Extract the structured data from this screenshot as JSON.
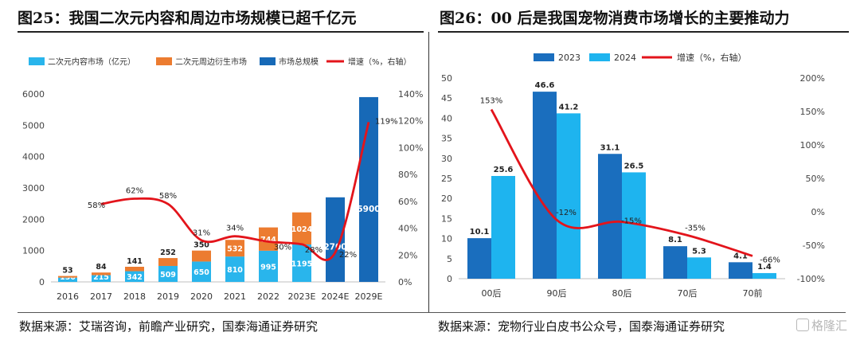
{
  "left_figure": {
    "title": "图25：我国二次元内容和周边市场规模已超千亿元",
    "source": "数据来源：艾瑞咨询，前瞻产业研究，国泰海通证券研究"
  },
  "right_figure": {
    "title": "图26：00 后是我国宠物消费市场增长的主要推动力",
    "source": "数据来源：宠物行业白皮书公众号，国泰海通证券研究"
  },
  "watermark": "格隆汇",
  "colors": {
    "light_blue": "#29b5ec",
    "orange": "#ec7c30",
    "dark_blue": "#1769b7",
    "red": "#e3141b",
    "blue_2023": "#1a6ebe",
    "blue_2024": "#1eb4ef"
  },
  "chart_data": [
    {
      "type": "bar",
      "stacked": true,
      "categories": [
        "2016",
        "2017",
        "2018",
        "2019",
        "2020",
        "2021",
        "2022",
        "2023E",
        "2024E",
        "2029E"
      ],
      "series": [
        {
          "name": "二次元内容市场（亿元）",
          "kind": "bar",
          "color": "#29b5ec",
          "values": [
            136,
            215,
            342,
            509,
            650,
            810,
            995,
            1195,
            null,
            null
          ],
          "labels": [
            "136",
            "215",
            "342",
            "509",
            "650",
            "810",
            "995",
            "1195",
            "",
            ""
          ]
        },
        {
          "name": "二次元周边衍生市场",
          "kind": "bar",
          "color": "#ec7c30",
          "values": [
            53,
            84,
            141,
            252,
            350,
            532,
            744,
            1024,
            null,
            null
          ],
          "labels": [
            "53",
            "84",
            "141",
            "252",
            "350",
            "532",
            "744",
            "1024",
            "",
            ""
          ]
        },
        {
          "name": "市场总规模",
          "kind": "bar",
          "color": "#1769b7",
          "values": [
            null,
            null,
            null,
            null,
            null,
            null,
            null,
            null,
            2700,
            5900
          ],
          "labels": [
            "",
            "",
            "",
            "",
            "",
            "",
            "",
            "",
            "2700",
            "5900"
          ]
        },
        {
          "name": "增速（%，右轴）",
          "kind": "line",
          "axis": "right",
          "color": "#e3141b",
          "values": [
            null,
            58,
            62,
            58,
            31,
            34,
            30,
            28,
            22,
            119
          ],
          "labels": [
            "",
            "58%",
            "62%",
            "58%",
            "31%",
            "34%",
            "30%",
            "28%",
            "22%",
            "119%"
          ]
        }
      ],
      "ylim": [
        0,
        6000
      ],
      "yticks": [
        "0",
        "1000",
        "2000",
        "3000",
        "4000",
        "5000",
        "6000"
      ],
      "y2lim": [
        0,
        140
      ],
      "y2ticks": [
        "0%",
        "20%",
        "40%",
        "60%",
        "80%",
        "100%",
        "120%",
        "140%"
      ],
      "grid": false,
      "legend": "top"
    },
    {
      "type": "bar",
      "categories": [
        "00后",
        "90后",
        "80后",
        "70后",
        "70前"
      ],
      "series": [
        {
          "name": "2023",
          "kind": "bar",
          "color": "#1a6ebe",
          "values": [
            10.1,
            46.6,
            31.1,
            8.1,
            4.1
          ],
          "labels": [
            "10.1",
            "46.6",
            "31.1",
            "8.1",
            "4.1"
          ]
        },
        {
          "name": "2024",
          "kind": "bar",
          "color": "#1eb4ef",
          "values": [
            25.6,
            41.2,
            26.5,
            5.3,
            1.4
          ],
          "labels": [
            "25.6",
            "41.2",
            "26.5",
            "5.3",
            "1.4"
          ]
        },
        {
          "name": "增速（%，右轴）",
          "kind": "line",
          "axis": "right",
          "color": "#e3141b",
          "values": [
            153,
            -12,
            -15,
            -35,
            -66
          ],
          "labels": [
            "153%",
            "-12%",
            "-15%",
            "-35%",
            "-66%"
          ]
        }
      ],
      "ylim": [
        0,
        50
      ],
      "yticks": [
        "0",
        "5",
        "10",
        "15",
        "20",
        "25",
        "30",
        "35",
        "40",
        "45",
        "50"
      ],
      "y2lim": [
        -100,
        200
      ],
      "y2ticks": [
        "-100%",
        "-50%",
        "0%",
        "50%",
        "100%",
        "150%",
        "200%"
      ],
      "grid": false,
      "legend": "top"
    }
  ]
}
